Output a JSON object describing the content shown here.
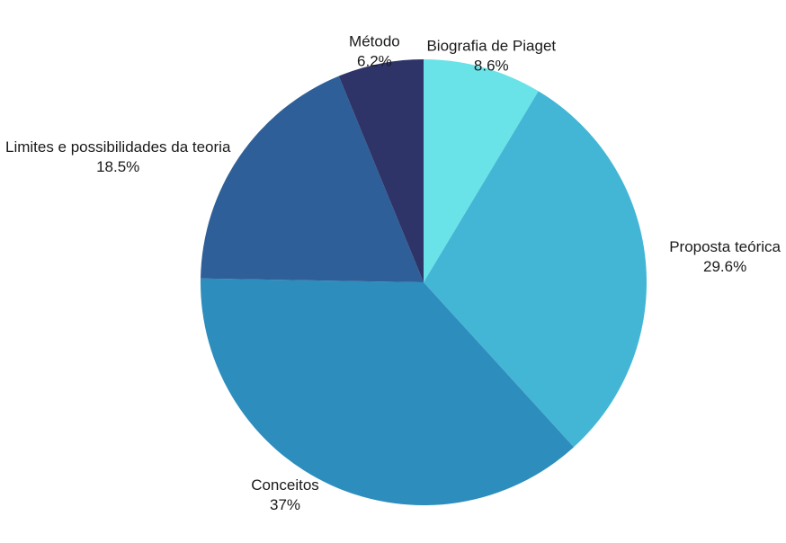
{
  "chart_data": {
    "type": "pie",
    "title": "",
    "start": "top",
    "direction": "clockwise",
    "legend": "none",
    "slices": [
      {
        "label": "Biografia de Piaget",
        "value_label": "8.6%",
        "value": 8.6,
        "color": "#69e3e8"
      },
      {
        "label": "Proposta teórica",
        "value_label": "29.6%",
        "value": 29.6,
        "color": "#43b6d6"
      },
      {
        "label": "Conceitos",
        "value_label": "37%",
        "value": 37.0,
        "color": "#2d8dbd"
      },
      {
        "label": "Limites e possibilidades da teoria",
        "value_label": "18.5%",
        "value": 18.5,
        "color": "#2e5f98"
      },
      {
        "label": "Método",
        "value_label": "6.2%",
        "value": 6.2,
        "color": "#2e3468"
      }
    ]
  }
}
